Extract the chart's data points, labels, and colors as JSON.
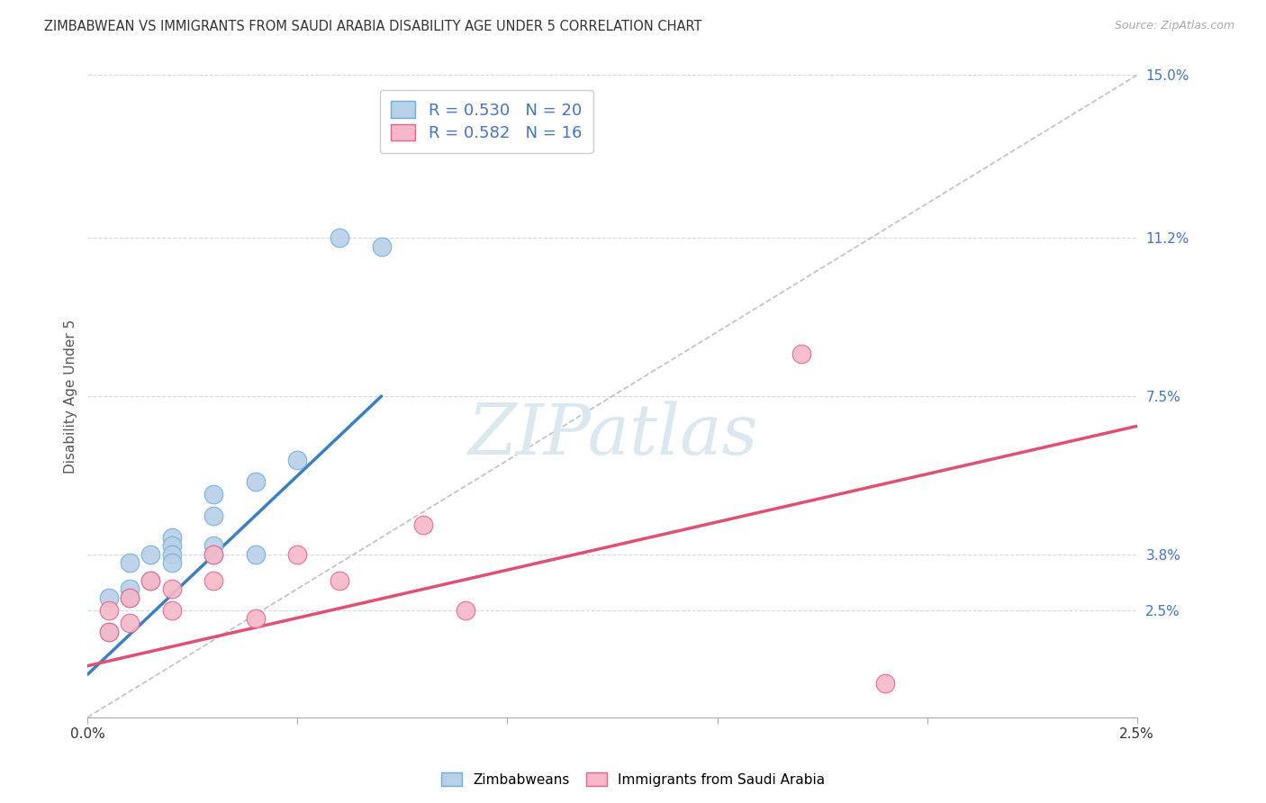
{
  "title": "ZIMBABWEAN VS IMMIGRANTS FROM SAUDI ARABIA DISABILITY AGE UNDER 5 CORRELATION CHART",
  "source": "Source: ZipAtlas.com",
  "ylabel": "Disability Age Under 5",
  "xlim": [
    0.0,
    0.025
  ],
  "ylim": [
    0.0,
    0.15
  ],
  "xtick_positions": [
    0.0,
    0.005,
    0.01,
    0.015,
    0.02,
    0.025
  ],
  "xtick_labels": [
    "0.0%",
    "",
    "",
    "",
    "",
    "2.5%"
  ],
  "ytick_right_positions": [
    0.025,
    0.038,
    0.075,
    0.112,
    0.15
  ],
  "ytick_right_labels": [
    "2.5%",
    "3.8%",
    "7.5%",
    "11.2%",
    "15.0%"
  ],
  "legend_r1": "R = 0.530",
  "legend_n1": "N = 20",
  "legend_r2": "R = 0.582",
  "legend_n2": "N = 16",
  "blue_color": "#b8d0e8",
  "pink_color": "#f5b8c8",
  "blue_edge_color": "#6baed6",
  "pink_edge_color": "#e8608a",
  "blue_line_color": "#3a7fc1",
  "pink_line_color": "#e05070",
  "blue_scatter_x": [
    0.0005,
    0.0005,
    0.001,
    0.001,
    0.001,
    0.0015,
    0.0015,
    0.002,
    0.002,
    0.002,
    0.002,
    0.003,
    0.003,
    0.003,
    0.003,
    0.004,
    0.004,
    0.005,
    0.006,
    0.007
  ],
  "blue_scatter_y": [
    0.02,
    0.028,
    0.03,
    0.036,
    0.028,
    0.038,
    0.032,
    0.042,
    0.04,
    0.038,
    0.036,
    0.047,
    0.052,
    0.04,
    0.038,
    0.055,
    0.038,
    0.06,
    0.112,
    0.11
  ],
  "pink_scatter_x": [
    0.0005,
    0.0005,
    0.001,
    0.001,
    0.0015,
    0.002,
    0.002,
    0.003,
    0.003,
    0.004,
    0.005,
    0.006,
    0.008,
    0.009,
    0.017,
    0.019
  ],
  "pink_scatter_y": [
    0.025,
    0.02,
    0.028,
    0.022,
    0.032,
    0.025,
    0.03,
    0.038,
    0.032,
    0.023,
    0.038,
    0.032,
    0.045,
    0.025,
    0.085,
    0.008
  ],
  "blue_line_x": [
    0.0,
    0.007
  ],
  "blue_line_y": [
    0.01,
    0.075
  ],
  "pink_line_x": [
    0.0,
    0.025
  ],
  "pink_line_y": [
    0.012,
    0.068
  ],
  "diag_line_x": [
    0.0,
    0.025
  ],
  "diag_line_y": [
    0.0,
    0.15
  ],
  "watermark": "ZIPatlas",
  "background_color": "#ffffff",
  "grid_color": "#d8d8d8"
}
